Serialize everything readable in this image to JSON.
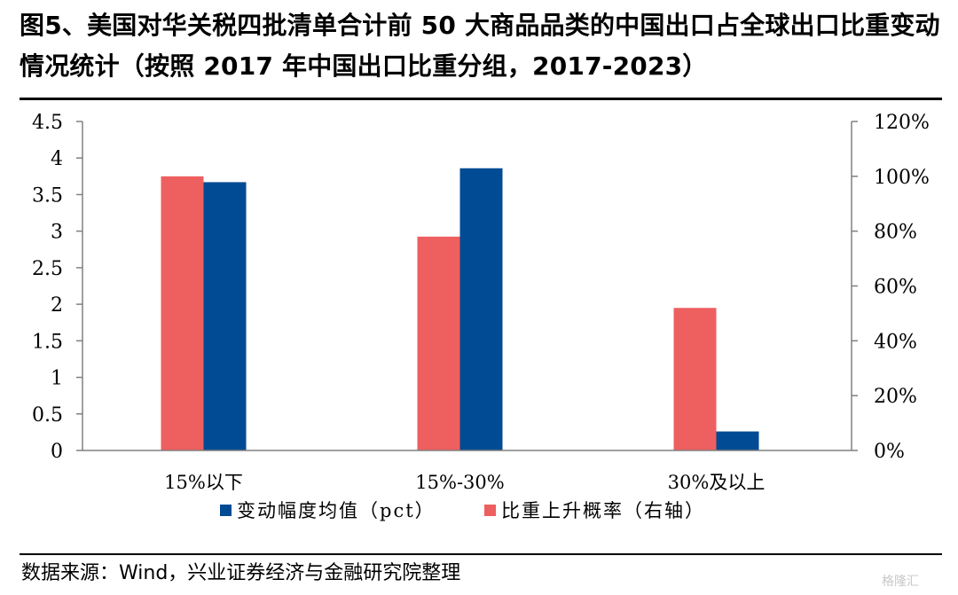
{
  "title": "图5、美国对华关税四批清单合计前 50 大商品品类的中国出口占全球出口比重变动情况统计（按照 2017 年中国出口比重分组，2017-2023）",
  "source": "数据来源：Wind，兴业证券经济与金融研究院整理",
  "watermark": "格隆汇",
  "colors": {
    "blue": "#004B93",
    "red": "#EE5F5F"
  },
  "chart_data": {
    "type": "bar",
    "categories": [
      "15%以下",
      "15%-30%",
      "30%及以上"
    ],
    "series": [
      {
        "name": "比重上升概率（右轴）",
        "axis": "right",
        "color": "#EE5F5F",
        "values": [
          1.0,
          0.78,
          0.52
        ]
      },
      {
        "name": "变动幅度均值（pct）",
        "axis": "left",
        "color": "#004B93",
        "values": [
          3.67,
          3.86,
          0.26
        ]
      }
    ],
    "legend_order": [
      1,
      0
    ],
    "y_left": {
      "min": 0,
      "max": 4.5,
      "ticks": [
        0,
        0.5,
        1,
        1.5,
        2,
        2.5,
        3,
        3.5,
        4,
        4.5
      ],
      "tick_labels": [
        "0",
        "0.5",
        "1",
        "1.5",
        "2",
        "2.5",
        "3",
        "3.5",
        "4",
        "4.5"
      ]
    },
    "y_right": {
      "min": 0,
      "max": 1.2,
      "ticks": [
        0,
        0.2,
        0.4,
        0.6,
        0.8,
        1.0,
        1.2
      ],
      "tick_labels": [
        "0%",
        "20%",
        "40%",
        "60%",
        "80%",
        "100%",
        "120%"
      ]
    },
    "legend_position": "bottom-center",
    "grid": false
  }
}
